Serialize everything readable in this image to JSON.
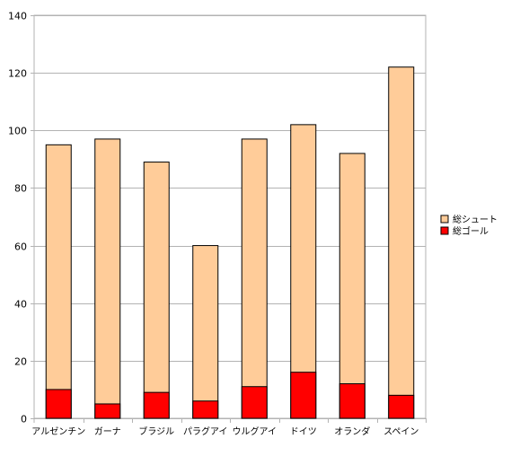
{
  "chart_data": {
    "type": "bar",
    "stacked": true,
    "categories": [
      "アルゼンチン",
      "ガーナ",
      "ブラジル",
      "パラグアイ",
      "ウルグアイ",
      "ドイツ",
      "オランダ",
      "スペイン"
    ],
    "series": [
      {
        "name": "総シュート",
        "values": [
          95,
          97,
          89,
          60,
          97,
          102,
          92,
          122
        ],
        "color": "#ffcc99"
      },
      {
        "name": "総ゴール",
        "values": [
          10,
          5,
          9,
          6,
          11,
          16,
          12,
          8
        ],
        "color": "#ff0000"
      }
    ],
    "overlay": true,
    "ylim": [
      0,
      140
    ],
    "yticks": [
      0,
      20,
      40,
      60,
      80,
      100,
      120,
      140
    ],
    "grid": true,
    "legend": "right",
    "title": "",
    "xlabel": "",
    "ylabel": ""
  }
}
